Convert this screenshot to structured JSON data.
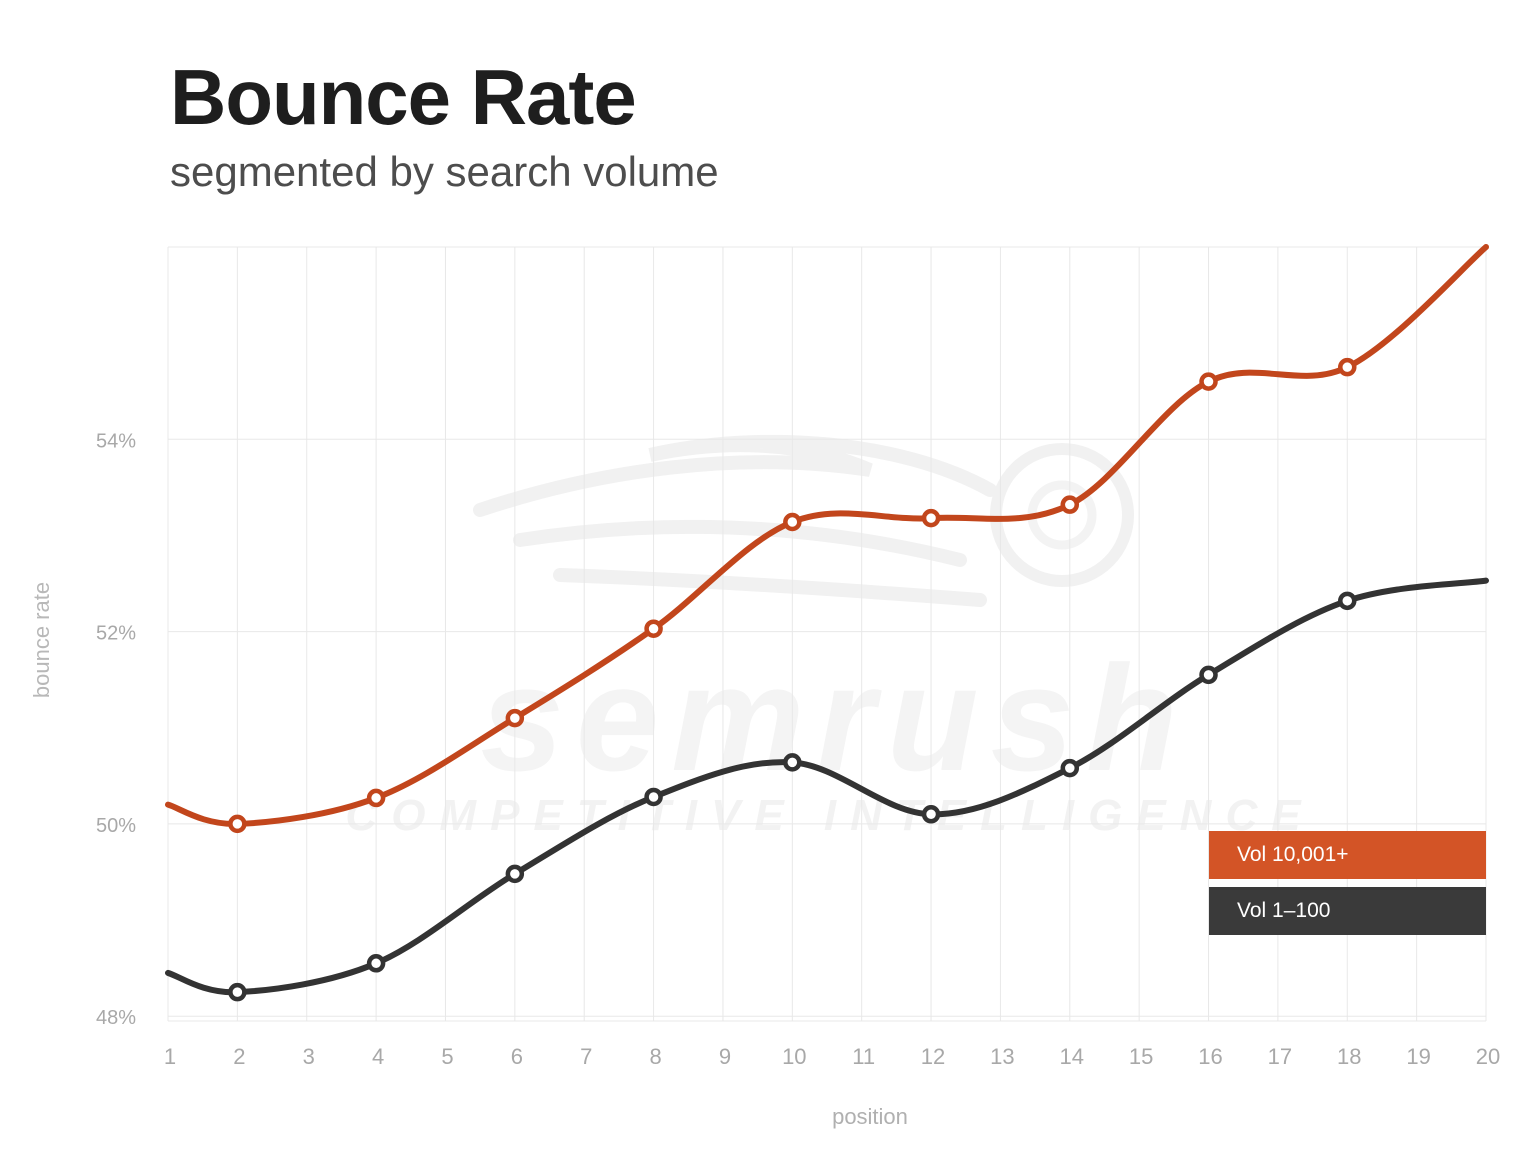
{
  "header": {
    "title": "Bounce Rate",
    "subtitle": "segmented by search volume"
  },
  "watermark": {
    "brand": "semrush",
    "tagline": "COMPETITIVE INTELLIGENCE",
    "icon": "semrush-fireball-icon"
  },
  "legend": {
    "items": [
      {
        "label": "Vol 10,001+",
        "color": "#d35426"
      },
      {
        "label": "Vol 1–100",
        "color": "#3a3a3a"
      }
    ]
  },
  "chart_data": {
    "type": "line",
    "title": "Bounce Rate",
    "subtitle": "segmented by search volume",
    "xlabel": "position",
    "ylabel": "bounce rate",
    "x": [
      1,
      2,
      3,
      4,
      5,
      6,
      7,
      8,
      9,
      10,
      11,
      12,
      13,
      14,
      15,
      16,
      17,
      18,
      19,
      20
    ],
    "x_tick_labels": [
      "1",
      "2",
      "3",
      "4",
      "5",
      "6",
      "7",
      "8",
      "9",
      "10",
      "11",
      "12",
      "13",
      "14",
      "15",
      "16",
      "17",
      "18",
      "19",
      "20"
    ],
    "y_ticks": [
      48,
      50,
      52,
      54
    ],
    "y_tick_labels": [
      "48%",
      "50%",
      "52%",
      "54%"
    ],
    "ylim": [
      47.95,
      56
    ],
    "grid": true,
    "legend_position": "bottom-right",
    "series": [
      {
        "name": "Vol 10,001+",
        "color": "#c2461c",
        "x": [
          1,
          2,
          4,
          6,
          8,
          10,
          12,
          14,
          16,
          18,
          20
        ],
        "values": [
          50.2,
          50.0,
          50.27,
          51.1,
          52.03,
          53.14,
          53.18,
          53.32,
          54.6,
          54.75,
          56.0
        ],
        "marker_points": [
          2,
          4,
          6,
          8,
          10,
          12,
          14,
          16,
          18
        ]
      },
      {
        "name": "Vol 1–100",
        "color": "#333333",
        "x": [
          1,
          2,
          4,
          6,
          8,
          10,
          12,
          14,
          16,
          18,
          20
        ],
        "values": [
          48.45,
          48.25,
          48.55,
          49.48,
          50.28,
          50.64,
          50.1,
          50.58,
          51.55,
          52.32,
          52.53
        ],
        "marker_points": [
          2,
          4,
          6,
          8,
          10,
          12,
          14,
          16,
          18
        ]
      }
    ]
  }
}
